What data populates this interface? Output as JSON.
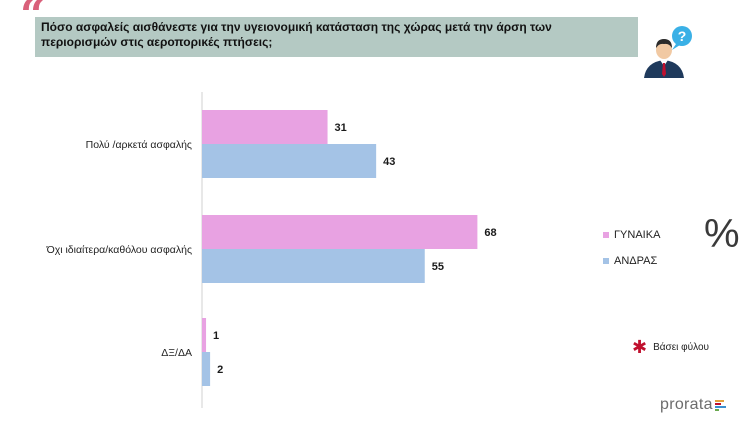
{
  "question": "Πόσο ασφαλείς αισθάνεστε για την υγειονομική κατάσταση της χώρας μετά  την άρση των περιορισμών στις αεροπορικές πτήσεις;",
  "icons": {
    "quote": "quote-mark-icon",
    "person": "person-question-icon",
    "note": "asterisk-icon"
  },
  "colors": {
    "women": "#e8a2e2",
    "men": "#a4c3e6",
    "accent": "#c0102e",
    "question_bg": "#b4c9c3"
  },
  "percent_symbol": "%",
  "legend": [
    {
      "label": "ΓΥΝΑΙΚΑ",
      "color": "#e8a2e2"
    },
    {
      "label": "ΑΝΔΡΑΣ",
      "color": "#a4c3e6"
    }
  ],
  "note": "Βάσει φύλου",
  "brand": "prorata",
  "chart_data": {
    "type": "bar",
    "orientation": "horizontal",
    "categories": [
      "Πολύ /αρκετά ασφαλής",
      "Όχι ιδιαίτερα/καθόλου ασφαλής",
      "ΔΞ/ΔΑ"
    ],
    "series": [
      {
        "name": "ΓΥΝΑΙΚΑ",
        "values": [
          31,
          68,
          1
        ],
        "color": "#e8a2e2"
      },
      {
        "name": "ΑΝΔΡΑΣ",
        "values": [
          43,
          55,
          2
        ],
        "color": "#a4c3e6"
      }
    ],
    "xlim": [
      0,
      100
    ],
    "grid": false,
    "legend_position": "right"
  }
}
